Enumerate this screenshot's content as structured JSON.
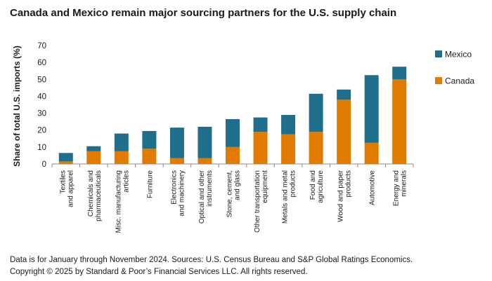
{
  "title": "Canada and Mexico remain major sourcing partners for the U.S. supply chain",
  "footnote": "Data is for January through November 2024. Sources: U.S. Census Bureau and S&P Global Ratings Economics.",
  "copyright": "Copyright © 2025 by Standard & Poor’s Financial Services LLC. All rights reserved.",
  "colors": {
    "Mexico": "#1f6e8c",
    "Canada": "#e07b00"
  },
  "chart_data": {
    "type": "bar",
    "stacked": true,
    "ylabel": "Share of total U.S. imports (%)",
    "xlabel": "",
    "ylim": [
      0,
      70
    ],
    "yticks": [
      0,
      10,
      20,
      30,
      40,
      50,
      60,
      70
    ],
    "grid": false,
    "legend_position": "right",
    "categories": [
      [
        "Textiles",
        "and apparel"
      ],
      [
        "Chemicals and",
        "pharmaceuticals"
      ],
      [
        "Misc. manufacturing",
        "articles"
      ],
      [
        "Furniture"
      ],
      [
        "Electronics",
        "and machinery"
      ],
      [
        "Optical and other",
        "instruments"
      ],
      [
        "Stone, cement,",
        "and glass"
      ],
      [
        "Other transportation",
        "equipment"
      ],
      [
        "Metals and metal",
        "products"
      ],
      [
        "Food and",
        "agriculture"
      ],
      [
        "Wood and paper",
        "products"
      ],
      [
        "Automotive"
      ],
      [
        "Energy and",
        "minerals"
      ]
    ],
    "series": [
      {
        "name": "Canada",
        "values": [
          1.5,
          7.5,
          7.5,
          9,
          3.5,
          3.5,
          10,
          19,
          17.5,
          19,
          38,
          12.5,
          50
        ]
      },
      {
        "name": "Mexico",
        "values": [
          5,
          3,
          10.5,
          10.5,
          18,
          18.5,
          16.5,
          8.5,
          11.5,
          22.5,
          6,
          40,
          7.5
        ]
      }
    ],
    "legend": [
      "Mexico",
      "Canada"
    ]
  }
}
